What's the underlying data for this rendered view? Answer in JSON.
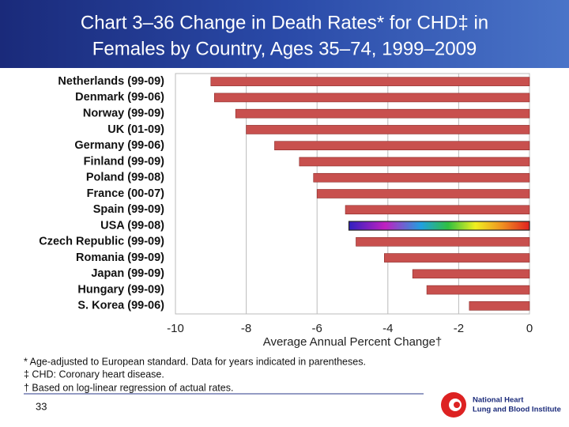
{
  "chart_data": {
    "type": "bar",
    "orientation": "horizontal",
    "title_lines": [
      "Chart 3–36 Change in Death Rates* for CHD‡ in",
      "Females by Country, Ages 35–74, 1999–2009"
    ],
    "x_label": "Average Annual Percent Change†",
    "categories": [
      "Netherlands (99-09)",
      "Denmark (99-06)",
      "Norway (99-09)",
      "UK (01-09)",
      "Germany (99-06)",
      "Finland (99-09)",
      "Poland (99-08)",
      "France (00-07)",
      "Spain (99-09)",
      "USA (99-08)",
      "Czech Republic (99-09)",
      "Romania (99-09)",
      "Japan (99-09)",
      "Hungary (99-09)",
      "S. Korea (99-06)"
    ],
    "values": [
      -9.0,
      -8.9,
      -8.3,
      -8.0,
      -7.2,
      -6.5,
      -6.1,
      -6.0,
      -5.2,
      -5.1,
      -4.9,
      -4.1,
      -3.3,
      -2.9,
      -1.7
    ],
    "color": "#c8504e",
    "highlight": "USA (99-08)",
    "highlight_color": "rainbow",
    "xlim": [
      -10,
      0
    ],
    "xticks": [
      -10,
      -8,
      -6,
      -4,
      -2,
      0
    ],
    "grid": true
  },
  "footnotes": [
    "* Age-adjusted to European standard. Data for years indicated in parentheses.",
    "‡ CHD: Coronary heart disease.",
    "† Based on log-linear regression of actual rates."
  ],
  "page_number": "33",
  "logo": {
    "lines": [
      "National Heart",
      "Lung and Blood Institute"
    ]
  }
}
